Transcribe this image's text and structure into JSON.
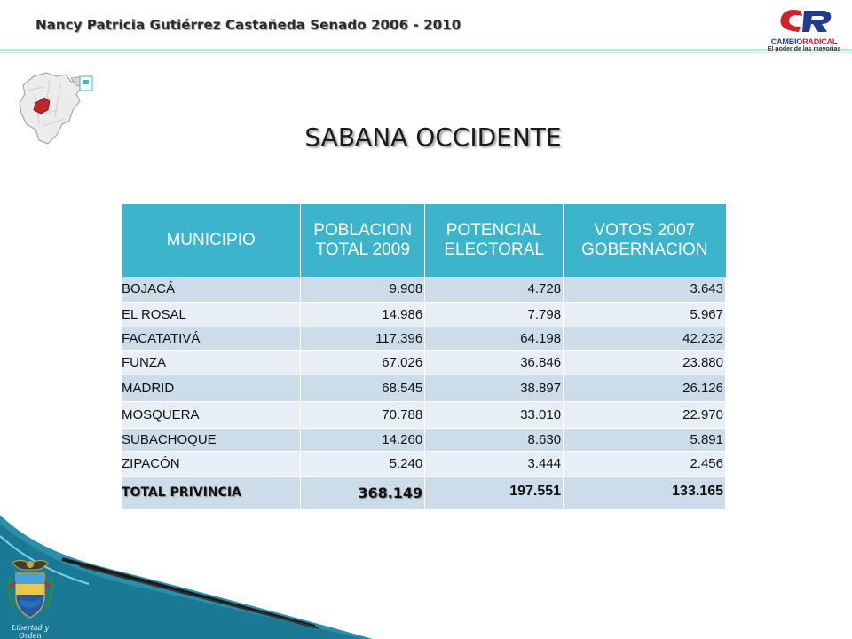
{
  "header": {
    "title": "Nancy Patricia Gutiérrez Castañeda Senado 2006 - 2010"
  },
  "logo": {
    "line1_part1": "CAMBIO",
    "line1_part2": "RADICAL",
    "line2": "El poder de las mayorias",
    "colors": {
      "blue": "#1f3d8c",
      "red": "#d4202a"
    }
  },
  "slide": {
    "title": "SABANA OCCIDENTE"
  },
  "table": {
    "headers": [
      [
        "MUNICIPIO"
      ],
      [
        "POBLACION",
        "TOTAL 2009"
      ],
      [
        "POTENCIAL",
        "ELECTORAL"
      ],
      [
        "VOTOS 2007",
        "GOBERNACION"
      ]
    ],
    "rows": [
      [
        "BOJACÁ",
        "9.908",
        "4.728",
        "3.643"
      ],
      [
        "EL ROSAL",
        "14.986",
        "7.798",
        "5.967"
      ],
      [
        "FACATATIVÁ",
        "117.396",
        "64.198",
        "42.232"
      ],
      [
        "FUNZA",
        "67.026",
        "36.846",
        "23.880"
      ],
      [
        "MADRID",
        "68.545",
        "38.897",
        "26.126"
      ],
      [
        "MOSQUERA",
        "70.788",
        "33.010",
        "22.970"
      ],
      [
        "SUBACHOQUE",
        "14.260",
        "8.630",
        "5.891"
      ],
      [
        "ZIPACÓN",
        "5.240",
        "3.444",
        "2.456"
      ]
    ],
    "total": [
      "TOTAL PRIVINCIA",
      "368.149",
      "197.551",
      "133.165"
    ],
    "colors": {
      "header": "#3cb5cc",
      "row_dark": "#ccdde9",
      "row_light": "#e8eef5"
    }
  },
  "footer": {
    "coat_caption": "Libertad y Orden"
  }
}
